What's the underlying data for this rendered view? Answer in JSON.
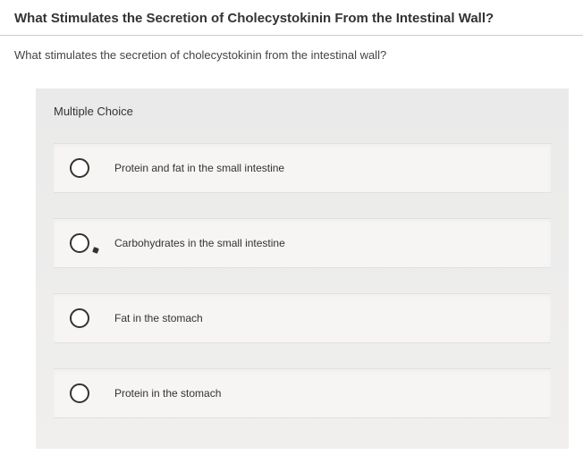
{
  "header": {
    "title": "What Stimulates the Secretion of Cholecystokinin From the Intestinal Wall?"
  },
  "question": {
    "text": "What stimulates the secretion of cholecystokinin from the intestinal wall?"
  },
  "quiz": {
    "type_label": "Multiple Choice",
    "options": [
      {
        "label": "Protein and fat in the small intestine",
        "has_cursor": false
      },
      {
        "label": "Carbohydrates in the small intestine",
        "has_cursor": true
      },
      {
        "label": "Fat in the stomach",
        "has_cursor": false
      },
      {
        "label": "Protein in the stomach",
        "has_cursor": false
      }
    ]
  },
  "colors": {
    "panel_bg_top": "#eaeaea",
    "panel_bg_bottom": "#f0efed",
    "option_bg": "#f6f5f3",
    "border": "#cccccc",
    "text_primary": "#333333",
    "text_secondary": "#444444",
    "radio_border": "#333333"
  },
  "typography": {
    "title_fontsize": 15,
    "title_weight": "bold",
    "question_fontsize": 13,
    "mc_label_fontsize": 13,
    "option_fontsize": 12
  }
}
